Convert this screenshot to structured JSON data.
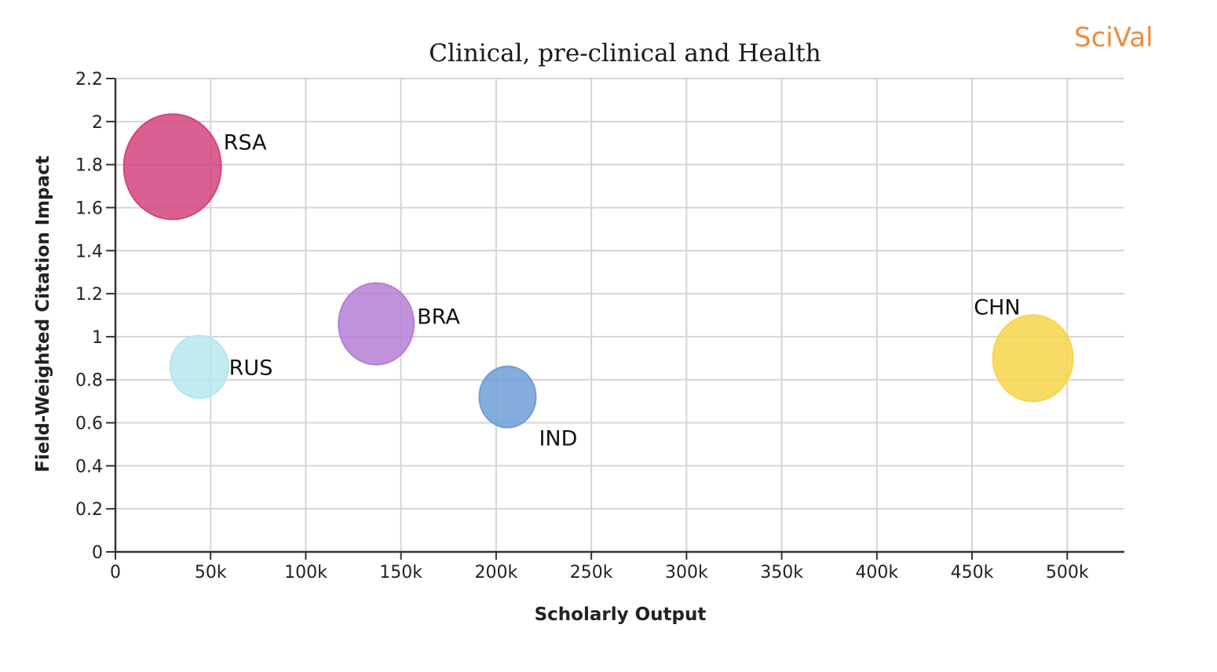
{
  "chart_data": {
    "type": "scatter",
    "title": "Clinical, pre-clinical and Health",
    "brand": "SciVal",
    "xlabel": "Scholarly Output",
    "ylabel": "Field-Weighted Citation Impact",
    "xlim": [
      0,
      530000
    ],
    "ylim": [
      0,
      2.2
    ],
    "x_ticks": [
      0,
      50000,
      100000,
      150000,
      200000,
      250000,
      300000,
      350000,
      400000,
      450000,
      500000
    ],
    "x_tick_labels": [
      "0",
      "50k",
      "100k",
      "150k",
      "200k",
      "250k",
      "300k",
      "350k",
      "400k",
      "450k",
      "500k"
    ],
    "y_ticks": [
      0,
      0.2,
      0.4,
      0.6,
      0.8,
      1,
      1.2,
      1.4,
      1.6,
      1.8,
      2,
      2.2
    ],
    "y_tick_labels": [
      "0",
      "0.2",
      "0.4",
      "0.6",
      "0.8",
      "1",
      "1.2",
      "1.4",
      "1.6",
      "1.8",
      "2",
      "2.2"
    ],
    "grid": true,
    "points": [
      {
        "label": "RSA",
        "x": 30000,
        "y": 1.79,
        "color": "#d4447f"
      },
      {
        "label": "RUS",
        "x": 44000,
        "y": 0.86,
        "color": "#b6e6ee"
      },
      {
        "label": "BRA",
        "x": 137000,
        "y": 1.06,
        "color": "#b57fd6"
      },
      {
        "label": "IND",
        "x": 206000,
        "y": 0.72,
        "color": "#6f9dd6"
      },
      {
        "label": "CHN",
        "x": 482000,
        "y": 0.9,
        "color": "#f7d54a"
      }
    ]
  }
}
